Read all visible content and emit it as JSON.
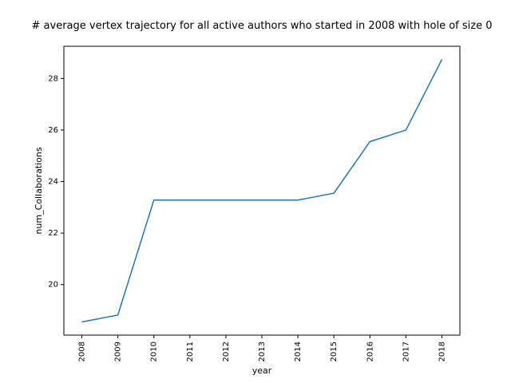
{
  "chart_data": {
    "type": "line",
    "title": "# average vertex trajectory for all active authors who started in 2008 with hole of size 0",
    "xlabel": "year",
    "ylabel": "num_Collaborations",
    "x": [
      "2008",
      "2009",
      "2010",
      "2011",
      "2012",
      "2013",
      "2014",
      "2015",
      "2016",
      "2017",
      "2018"
    ],
    "series": [
      {
        "values": [
          18.55,
          18.82,
          23.28,
          23.28,
          23.28,
          23.28,
          23.28,
          23.55,
          25.55,
          26.0,
          28.74
        ],
        "color": "#1f77b4"
      }
    ],
    "yticks": [
      20,
      22,
      24,
      26,
      28
    ],
    "ylim": [
      18.04,
      29.25
    ],
    "grid": false,
    "legend": "none"
  }
}
